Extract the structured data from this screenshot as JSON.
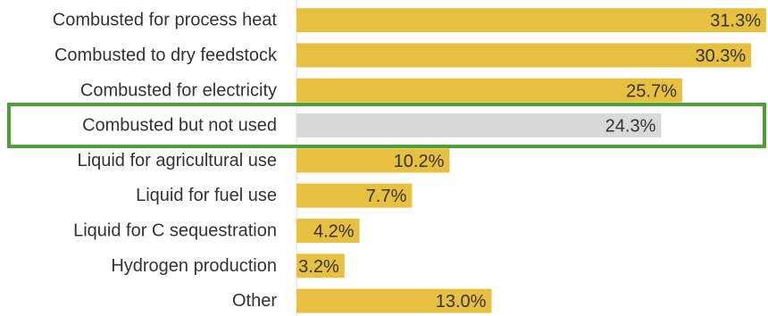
{
  "chart_data": {
    "type": "bar",
    "orientation": "horizontal",
    "title": "",
    "xlabel": "",
    "ylabel": "",
    "grid": false,
    "legend": "none",
    "xlim": [
      0,
      31.3
    ],
    "categories": [
      "Combusted for process heat",
      "Combusted to dry feedstock",
      "Combusted for electricity",
      "Combusted but not used",
      "Liquid for agricultural use",
      "Liquid for fuel use",
      "Liquid for C sequestration",
      "Hydrogen production",
      "Other"
    ],
    "values": [
      31.3,
      30.3,
      25.7,
      24.3,
      10.2,
      7.7,
      4.2,
      3.2,
      13.0
    ],
    "labels": [
      "31.3%",
      "30.3%",
      "25.7%",
      "24.3%",
      "10.2%",
      "7.7%",
      "4.2%",
      "3.2%",
      "13.0%"
    ],
    "highlighted_category": "Combusted but not used",
    "colors": {
      "bar": "#E8C03F",
      "highlight_bar": "#D9D9D9",
      "highlight_outline": "#4E9E38",
      "label_text": "#333333",
      "value_text": "#333333"
    }
  }
}
